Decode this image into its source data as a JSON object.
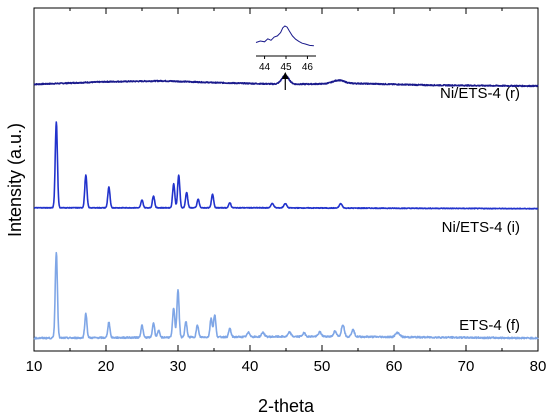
{
  "chart_data": {
    "type": "line",
    "xlabel": "2-theta",
    "ylabel": "Intensity (a.u.)",
    "xlim": [
      10,
      80
    ],
    "x_ticks": [
      10,
      20,
      30,
      40,
      50,
      60,
      70,
      80
    ],
    "y_ticks_shown": false,
    "grid": false,
    "legend": "none",
    "series": [
      {
        "name": "Ni/ETS-4 (r)",
        "color": "#1a1a8c",
        "baseline": 0.76,
        "background": [
          [
            10,
            0.0
          ],
          [
            20,
            0.03
          ],
          [
            28,
            0.04
          ],
          [
            35,
            0.02
          ],
          [
            45,
            0.0
          ],
          [
            55,
            0.01
          ],
          [
            65,
            -0.01
          ],
          [
            80,
            -0.02
          ]
        ],
        "peaks": [
          [
            44.9,
            0.1,
            0.5
          ],
          [
            52.3,
            0.04,
            0.8
          ]
        ],
        "noise": 0.012
      },
      {
        "name": "Ni/ETS-4 (i)",
        "color": "#2233cc",
        "baseline": 0.4,
        "background": [
          [
            10,
            0.0
          ],
          [
            40,
            0.0
          ],
          [
            80,
            -0.01
          ]
        ],
        "peaks": [
          [
            13.1,
            1.0,
            0.15
          ],
          [
            17.2,
            0.38,
            0.15
          ],
          [
            20.4,
            0.24,
            0.15
          ],
          [
            25.0,
            0.09,
            0.15
          ],
          [
            26.6,
            0.14,
            0.15
          ],
          [
            29.4,
            0.28,
            0.15
          ],
          [
            30.1,
            0.38,
            0.15
          ],
          [
            31.2,
            0.18,
            0.15
          ],
          [
            32.8,
            0.1,
            0.15
          ],
          [
            34.8,
            0.16,
            0.15
          ],
          [
            37.2,
            0.06,
            0.15
          ],
          [
            43.1,
            0.05,
            0.2
          ],
          [
            44.9,
            0.05,
            0.2
          ],
          [
            52.6,
            0.05,
            0.2
          ]
        ],
        "noise": 0.008
      },
      {
        "name": "ETS-4 (f)",
        "color": "#7fa6e6",
        "baseline": 0.02,
        "background": [
          [
            10,
            0.0
          ],
          [
            30,
            0.01
          ],
          [
            50,
            0.02
          ],
          [
            80,
            0.0
          ]
        ],
        "peaks": [
          [
            13.1,
            1.0,
            0.15
          ],
          [
            17.2,
            0.28,
            0.15
          ],
          [
            20.4,
            0.18,
            0.15
          ],
          [
            25.0,
            0.14,
            0.15
          ],
          [
            26.6,
            0.17,
            0.15
          ],
          [
            27.3,
            0.08,
            0.15
          ],
          [
            29.4,
            0.34,
            0.15
          ],
          [
            30.0,
            0.55,
            0.15
          ],
          [
            31.1,
            0.18,
            0.15
          ],
          [
            32.7,
            0.14,
            0.15
          ],
          [
            34.6,
            0.22,
            0.15
          ],
          [
            35.1,
            0.26,
            0.15
          ],
          [
            37.2,
            0.1,
            0.15
          ],
          [
            39.8,
            0.05,
            0.2
          ],
          [
            41.8,
            0.05,
            0.2
          ],
          [
            45.5,
            0.05,
            0.2
          ],
          [
            47.5,
            0.04,
            0.2
          ],
          [
            49.7,
            0.05,
            0.2
          ],
          [
            51.8,
            0.06,
            0.2
          ],
          [
            52.9,
            0.14,
            0.2
          ],
          [
            54.3,
            0.08,
            0.2
          ],
          [
            60.5,
            0.05,
            0.3
          ]
        ],
        "noise": 0.018
      }
    ],
    "annotation": {
      "arrow_at_x": 44.9,
      "inset": {
        "x_range": [
          43.6,
          46.4
        ],
        "x_ticks": [
          "44",
          "45",
          "46"
        ],
        "points": [
          [
            43.6,
            0.25
          ],
          [
            43.8,
            0.32
          ],
          [
            44.0,
            0.28
          ],
          [
            44.15,
            0.42
          ],
          [
            44.3,
            0.35
          ],
          [
            44.45,
            0.5
          ],
          [
            44.6,
            0.55
          ],
          [
            44.75,
            0.7
          ],
          [
            44.85,
            0.92
          ],
          [
            44.95,
            1.0
          ],
          [
            45.05,
            0.95
          ],
          [
            45.15,
            0.78
          ],
          [
            45.3,
            0.55
          ],
          [
            45.45,
            0.4
          ],
          [
            45.6,
            0.3
          ],
          [
            45.75,
            0.22
          ],
          [
            45.9,
            0.18
          ],
          [
            46.1,
            0.12
          ],
          [
            46.3,
            0.1
          ]
        ]
      }
    }
  }
}
